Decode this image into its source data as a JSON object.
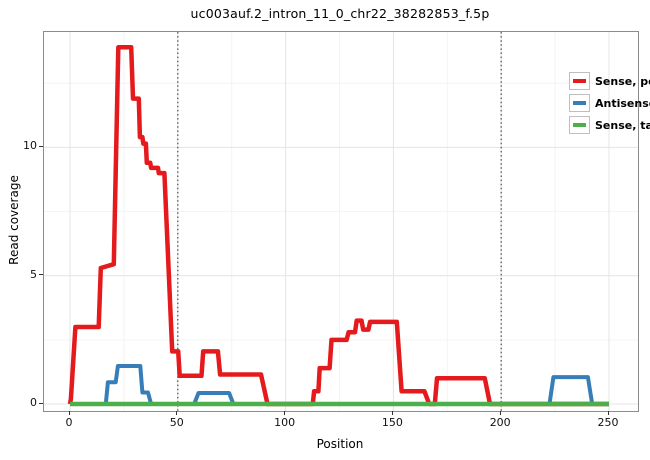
{
  "title": "uc003auf.2_intron_11_0_chr22_38282853_f.5p",
  "axes": {
    "xlabel": "Position",
    "ylabel": "Read coverage"
  },
  "colors": {
    "sense_perfect": "#e41a1c",
    "antisense": "#377eb8",
    "sense_tailed": "#4daf4a",
    "grid_major": "#e4e4e4",
    "grid_minor": "#f4f4f4",
    "vline": "#4d4d4d",
    "panel_border": "#8c8c8c"
  },
  "chart_data": {
    "type": "line",
    "title": "uc003auf.2_intron_11_0_chr22_38282853_f.5p",
    "xlabel": "Position",
    "ylabel": "Read coverage",
    "xlim": [
      0,
      250
    ],
    "ylim": [
      0,
      14.5
    ],
    "x_ticks": [
      0,
      50,
      100,
      150,
      200,
      250
    ],
    "y_ticks": [
      0,
      5,
      10
    ],
    "x_minor_ticks": [
      25,
      75,
      125,
      175,
      225
    ],
    "y_minor_ticks": [
      2.5,
      7.5,
      12.5
    ],
    "vlines_dotted": [
      50,
      200
    ],
    "grid": "major+minor",
    "legend_position": "top-right-inside",
    "series": [
      {
        "name": "Sense, perfect",
        "color": "#e41a1c",
        "stroke_width": 4.5,
        "points": [
          [
            0,
            0
          ],
          [
            0.4,
            0.2
          ],
          [
            2.5,
            3
          ],
          [
            13.3,
            3
          ],
          [
            14.3,
            5.3
          ],
          [
            20.3,
            5.45
          ],
          [
            22.4,
            13.9
          ],
          [
            28.4,
            13.9
          ],
          [
            29.2,
            11.9
          ],
          [
            31.9,
            11.9
          ],
          [
            32.4,
            10.4
          ],
          [
            33.6,
            10.4
          ],
          [
            34,
            10.15
          ],
          [
            35.2,
            10.15
          ],
          [
            35.6,
            9.4
          ],
          [
            37.2,
            9.4
          ],
          [
            37.6,
            9.2
          ],
          [
            40.8,
            9.2
          ],
          [
            41.2,
            9
          ],
          [
            43.8,
            9
          ],
          [
            47.4,
            2.05
          ],
          [
            50.2,
            2.05
          ],
          [
            50.9,
            1.1
          ],
          [
            61,
            1.1
          ],
          [
            61.8,
            2.05
          ],
          [
            68.6,
            2.05
          ],
          [
            69.6,
            1.15
          ],
          [
            88.6,
            1.15
          ],
          [
            91.6,
            0
          ],
          [
            112.6,
            0
          ],
          [
            113.2,
            0.5
          ],
          [
            115.2,
            0.5
          ],
          [
            115.8,
            1.4
          ],
          [
            120.4,
            1.4
          ],
          [
            121.3,
            2.5
          ],
          [
            128.3,
            2.5
          ],
          [
            129.2,
            2.8
          ],
          [
            132.2,
            2.8
          ],
          [
            133,
            3.25
          ],
          [
            135.2,
            3.25
          ],
          [
            136,
            2.9
          ],
          [
            138.4,
            2.9
          ],
          [
            139.2,
            3.2
          ],
          [
            151.6,
            3.2
          ],
          [
            153.8,
            0.5
          ],
          [
            164.4,
            0.5
          ],
          [
            166.6,
            0
          ],
          [
            169.2,
            0
          ],
          [
            170.2,
            1
          ],
          [
            192.4,
            1
          ],
          [
            194.8,
            0
          ],
          [
            250,
            0
          ]
        ]
      },
      {
        "name": "Antisense",
        "color": "#377eb8",
        "stroke_width": 4,
        "points": [
          [
            0,
            0
          ],
          [
            16.6,
            0
          ],
          [
            17.6,
            0.85
          ],
          [
            21.2,
            0.85
          ],
          [
            22.2,
            1.48
          ],
          [
            32.6,
            1.48
          ],
          [
            33.6,
            0.45
          ],
          [
            36.2,
            0.45
          ],
          [
            37.6,
            0
          ],
          [
            57.6,
            0
          ],
          [
            59.6,
            0.43
          ],
          [
            73.8,
            0.43
          ],
          [
            75.8,
            0
          ],
          [
            222.4,
            0
          ],
          [
            224.2,
            1.05
          ],
          [
            240.2,
            1.05
          ],
          [
            242.2,
            0
          ],
          [
            250,
            0
          ]
        ]
      },
      {
        "name": "Sense, tailed",
        "color": "#4daf4a",
        "stroke_width": 4.5,
        "points": [
          [
            0,
            0
          ],
          [
            250,
            0
          ]
        ]
      }
    ]
  }
}
